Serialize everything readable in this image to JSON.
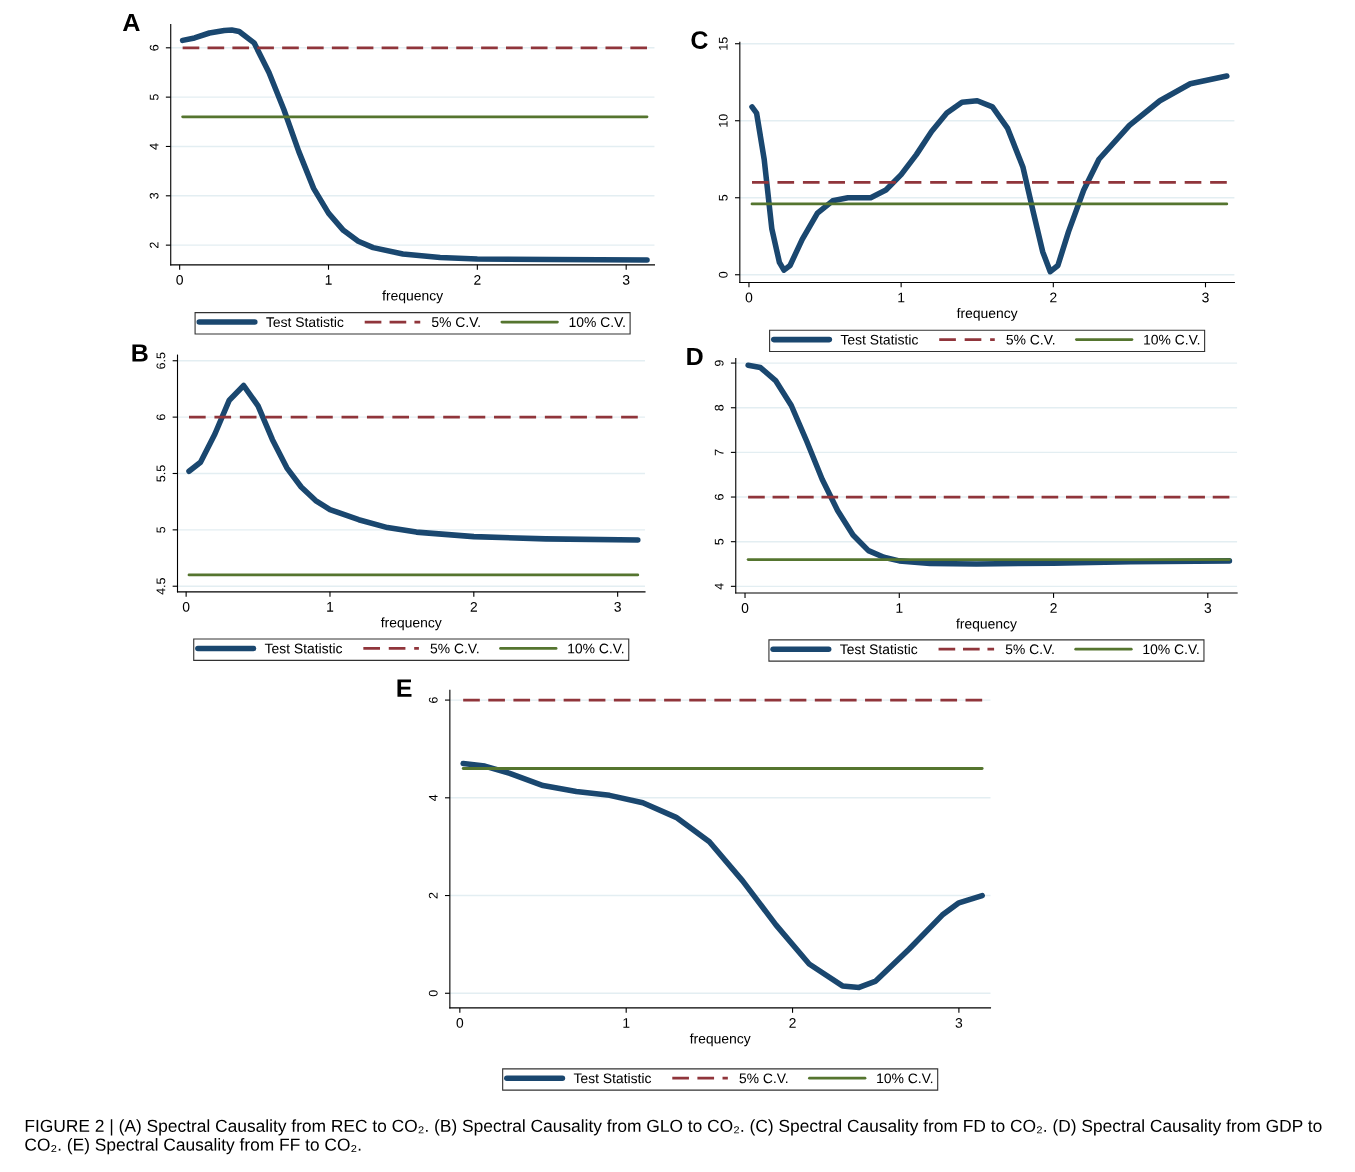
{
  "chart_data": [
    {
      "type": "line",
      "title": "A",
      "xlabel": "frequency",
      "xlim": [
        -0.06,
        3.19
      ],
      "xticks": [
        0,
        1,
        2,
        3
      ],
      "ylim": [
        1.6,
        6.47
      ],
      "yticks": [
        2,
        3,
        4,
        5,
        6
      ],
      "grid": "y",
      "legend": "bottom",
      "series": [
        {
          "name": "Test Statistic",
          "color": "#1a476f",
          "line_style": "solid",
          "x": [
            0.02,
            0.1,
            0.2,
            0.3,
            0.35,
            0.4,
            0.5,
            0.6,
            0.7,
            0.8,
            0.9,
            1.0,
            1.1,
            1.2,
            1.3,
            1.5,
            1.75,
            2.0,
            2.5,
            3.14
          ],
          "values": [
            6.15,
            6.2,
            6.3,
            6.35,
            6.36,
            6.33,
            6.1,
            5.5,
            4.75,
            3.9,
            3.15,
            2.65,
            2.3,
            2.08,
            1.95,
            1.82,
            1.75,
            1.72,
            1.71,
            1.7
          ]
        },
        {
          "name": "5% C.V.",
          "color": "#90353b",
          "line_style": "dashed",
          "x": [
            0.02,
            3.14
          ],
          "values": [
            6,
            6
          ]
        },
        {
          "name": "10% C.V.",
          "color": "#55752f",
          "line_style": "solid",
          "x": [
            0.02,
            3.14
          ],
          "values": [
            4.6,
            4.6
          ]
        }
      ]
    },
    {
      "type": "line",
      "title": "C",
      "xlabel": "frequency",
      "xlim": [
        -0.06,
        3.19
      ],
      "xticks": [
        0,
        1,
        2,
        3
      ],
      "ylim": [
        -0.5,
        15.1
      ],
      "yticks": [
        0,
        5,
        10,
        15
      ],
      "grid": "y",
      "legend": "bottom",
      "series": [
        {
          "name": "Test Statistic",
          "color": "#1a476f",
          "line_style": "solid",
          "x": [
            0.02,
            0.05,
            0.1,
            0.15,
            0.2,
            0.23,
            0.27,
            0.35,
            0.45,
            0.55,
            0.65,
            0.8,
            0.9,
            1.0,
            1.1,
            1.2,
            1.3,
            1.4,
            1.5,
            1.6,
            1.7,
            1.8,
            1.87,
            1.93,
            1.98,
            2.03,
            2.1,
            2.2,
            2.3,
            2.5,
            2.7,
            2.9,
            3.14
          ],
          "values": [
            10.9,
            10.5,
            7.5,
            3.0,
            0.8,
            0.3,
            0.6,
            2.3,
            4.0,
            4.8,
            5.0,
            5.0,
            5.5,
            6.5,
            7.8,
            9.3,
            10.5,
            11.2,
            11.3,
            10.9,
            9.5,
            7.0,
            4.0,
            1.5,
            0.2,
            0.6,
            2.8,
            5.5,
            7.5,
            9.7,
            11.3,
            12.4,
            12.9
          ]
        },
        {
          "name": "5% C.V.",
          "color": "#90353b",
          "line_style": "dashed",
          "x": [
            0.02,
            3.14
          ],
          "values": [
            6,
            6
          ]
        },
        {
          "name": "10% C.V.",
          "color": "#55752f",
          "line_style": "solid",
          "x": [
            0.02,
            3.14
          ],
          "values": [
            4.6,
            4.6
          ]
        }
      ]
    },
    {
      "type": "line",
      "title": "B",
      "xlabel": "frequency",
      "xlim": [
        -0.06,
        3.19
      ],
      "xticks": [
        0,
        1,
        2,
        3
      ],
      "ylim": [
        4.45,
        6.55
      ],
      "yticks": [
        4.5,
        5,
        5.5,
        6,
        6.5
      ],
      "grid": "y",
      "legend": "bottom",
      "series": [
        {
          "name": "Test Statistic",
          "color": "#1a476f",
          "line_style": "solid",
          "x": [
            0.02,
            0.1,
            0.2,
            0.3,
            0.4,
            0.5,
            0.6,
            0.7,
            0.8,
            0.9,
            1.0,
            1.2,
            1.4,
            1.6,
            1.8,
            2.0,
            2.5,
            3.14
          ],
          "values": [
            5.52,
            5.6,
            5.85,
            6.15,
            6.28,
            6.1,
            5.8,
            5.55,
            5.38,
            5.26,
            5.18,
            5.09,
            5.02,
            4.98,
            4.96,
            4.94,
            4.92,
            4.91
          ]
        },
        {
          "name": "5% C.V.",
          "color": "#90353b",
          "line_style": "dashed",
          "x": [
            0.02,
            3.14
          ],
          "values": [
            6,
            6
          ]
        },
        {
          "name": "10% C.V.",
          "color": "#55752f",
          "line_style": "solid",
          "x": [
            0.02,
            3.14
          ],
          "values": [
            4.6,
            4.6
          ]
        }
      ]
    },
    {
      "type": "line",
      "title": "D",
      "xlabel": "frequency",
      "xlim": [
        -0.06,
        3.19
      ],
      "xticks": [
        0,
        1,
        2,
        3
      ],
      "ylim": [
        3.85,
        9.1
      ],
      "yticks": [
        4,
        5,
        6,
        7,
        8,
        9
      ],
      "grid": "y",
      "legend": "bottom",
      "series": [
        {
          "name": "Test Statistic",
          "color": "#1a476f",
          "line_style": "solid",
          "x": [
            0.02,
            0.1,
            0.2,
            0.3,
            0.4,
            0.5,
            0.6,
            0.7,
            0.8,
            0.9,
            1.0,
            1.2,
            1.5,
            2.0,
            2.5,
            3.14
          ],
          "values": [
            8.95,
            8.9,
            8.6,
            8.05,
            7.25,
            6.4,
            5.7,
            5.15,
            4.8,
            4.65,
            4.57,
            4.51,
            4.5,
            4.52,
            4.55,
            4.57
          ]
        },
        {
          "name": "5% C.V.",
          "color": "#90353b",
          "line_style": "dashed",
          "x": [
            0.02,
            3.14
          ],
          "values": [
            6,
            6
          ]
        },
        {
          "name": "10% C.V.",
          "color": "#55752f",
          "line_style": "solid",
          "x": [
            0.02,
            3.14
          ],
          "values": [
            4.6,
            4.6
          ]
        }
      ]
    },
    {
      "type": "line",
      "title": "E",
      "xlabel": "frequency",
      "xlim": [
        -0.06,
        3.19
      ],
      "xticks": [
        0,
        1,
        2,
        3
      ],
      "ylim": [
        -0.3,
        6.2
      ],
      "yticks": [
        0,
        2,
        4,
        6
      ],
      "grid": "y",
      "legend": "bottom",
      "annotations": [
        "FIGURE 2 | (A) Spectral Causality from REC to CO₂. (B) Spectral Causality from GLO to CO₂. (C) Spectral Causality from FD to CO₂. (D) Spectral Causality from GDP to CO₂. (E) Spectral Causality from FF to CO₂."
      ],
      "series": [
        {
          "name": "Test Statistic",
          "color": "#1a476f",
          "line_style": "solid",
          "x": [
            0.02,
            0.15,
            0.3,
            0.5,
            0.7,
            0.9,
            1.1,
            1.3,
            1.5,
            1.7,
            1.9,
            2.1,
            2.3,
            2.4,
            2.5,
            2.7,
            2.9,
            3.0,
            3.14
          ],
          "values": [
            4.7,
            4.65,
            4.5,
            4.25,
            4.13,
            4.05,
            3.9,
            3.6,
            3.1,
            2.3,
            1.4,
            0.6,
            0.15,
            0.12,
            0.25,
            0.9,
            1.6,
            1.85,
            2.0
          ]
        },
        {
          "name": "5% C.V.",
          "color": "#90353b",
          "line_style": "dashed",
          "x": [
            0.02,
            3.14
          ],
          "values": [
            6,
            6
          ]
        },
        {
          "name": "10% C.V.",
          "color": "#55752f",
          "line_style": "solid",
          "x": [
            0.02,
            3.14
          ],
          "values": [
            4.6,
            4.6
          ]
        }
      ]
    }
  ]
}
